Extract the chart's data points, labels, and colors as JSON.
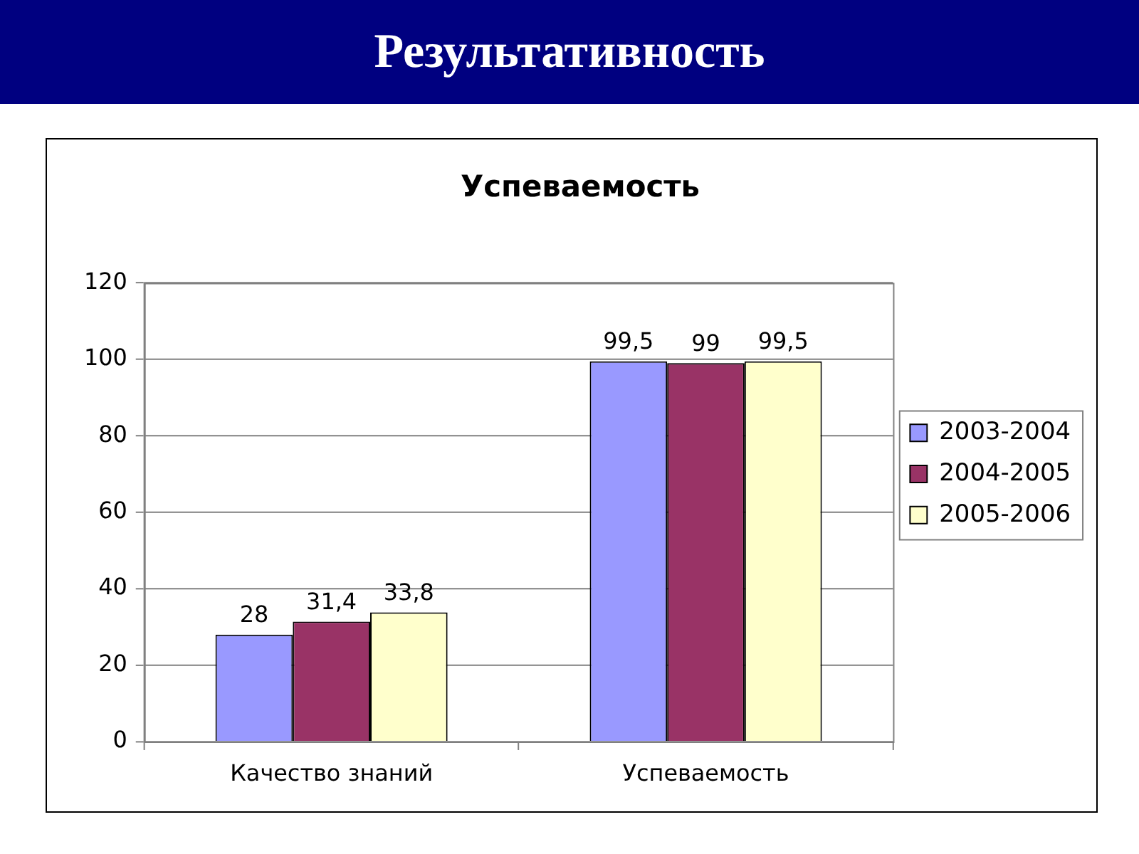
{
  "chart_data": {
    "type": "bar",
    "title": "Результативность",
    "subtitle": "Успеваемость",
    "categories": [
      "Качество знаний",
      "Успеваемость"
    ],
    "series": [
      {
        "name": "2003-2004",
        "color": "#9999ff",
        "values": [
          28,
          99.5
        ],
        "value_labels": [
          "28",
          "99,5"
        ]
      },
      {
        "name": "2004-2005",
        "color": "#993366",
        "values": [
          31.4,
          99
        ],
        "value_labels": [
          "31,4",
          "99"
        ]
      },
      {
        "name": "2005-2006",
        "color": "#ffffcc",
        "values": [
          33.8,
          99.5
        ],
        "value_labels": [
          "33,8",
          "99,5"
        ]
      }
    ],
    "ylim": [
      0,
      120
    ],
    "yticks": [
      0,
      20,
      40,
      60,
      80,
      100,
      120
    ],
    "grid": "y",
    "legend": "right"
  }
}
